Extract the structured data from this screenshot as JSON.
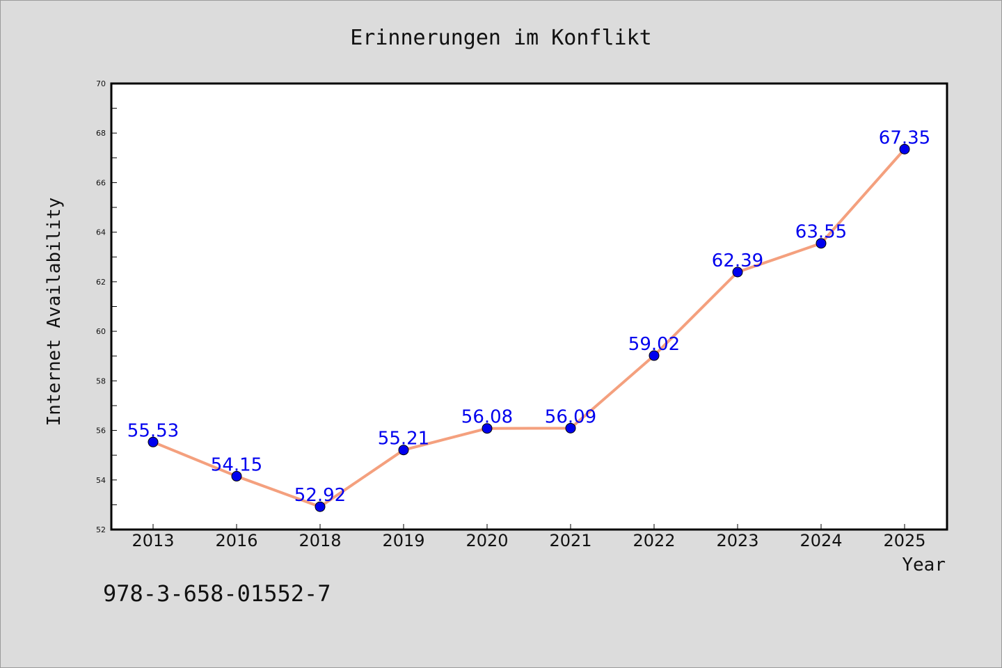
{
  "chart_data": {
    "type": "line",
    "title": "Erinnerungen im Konflikt",
    "xlabel": "Year",
    "ylabel": "Internet Availability",
    "categories": [
      "2013",
      "2016",
      "2018",
      "2019",
      "2020",
      "2021",
      "2022",
      "2023",
      "2024",
      "2025"
    ],
    "series": [
      {
        "values": [
          55.53,
          54.15,
          52.92,
          55.21,
          56.08,
          56.09,
          59.02,
          62.39,
          63.55,
          67.35
        ],
        "labels": [
          "55.53",
          "54.15",
          "52.92",
          "55.21",
          "56.08",
          "56.09",
          "59.02",
          "62.39",
          "63.55",
          "67.35"
        ],
        "line_color": "#f4a07e",
        "marker_color": "#0000ee",
        "label_color": "#0000ee"
      }
    ],
    "ylim": [
      52,
      70
    ],
    "y_ticks": [
      "52",
      "54",
      "56",
      "58",
      "60",
      "62",
      "64",
      "66",
      "68",
      "70"
    ],
    "grid": false,
    "legend": "none"
  },
  "footer": {
    "isbn": "978-3-658-01552-7"
  },
  "colors": {
    "background": "#dcdcdc",
    "plot_background": "#ffffff"
  }
}
